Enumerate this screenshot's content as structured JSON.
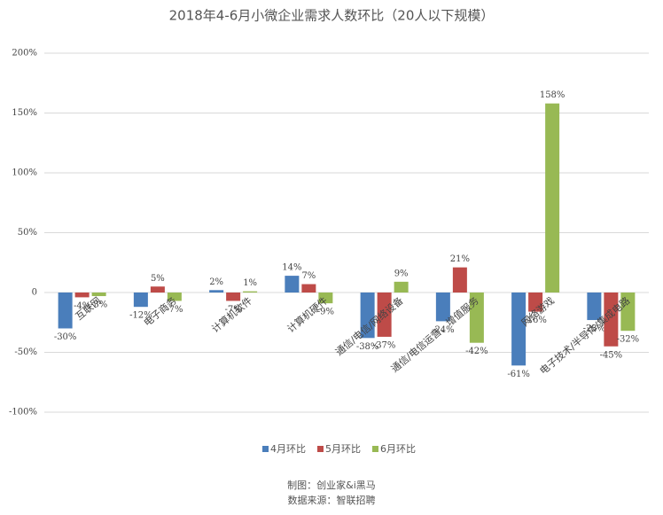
{
  "chart_data": {
    "type": "bar",
    "title": "2018年4-6月小微企业需求人数环比（20人以下规模）",
    "categories": [
      "互联网",
      "电子商务",
      "计算机软件",
      "计算机硬件",
      "通信/电信/网络设备",
      "通信/电信运营、增值服务",
      "网络游戏",
      "电子技术/半导体/集成电路"
    ],
    "series": [
      {
        "name": "4月环比",
        "color": "#4a7ebb",
        "values": [
          -30,
          -12,
          2,
          14,
          -38,
          -24,
          -61,
          -23
        ],
        "value_labels": [
          "-30%",
          "-12%",
          "2%",
          "14%",
          "-38%",
          "-24%",
          "-61%",
          "-23%"
        ]
      },
      {
        "name": "5月环比",
        "color": "#be4b48",
        "values": [
          -4,
          5,
          -7,
          7,
          -37,
          21,
          -16,
          -45
        ],
        "value_labels": [
          "-4%",
          "5%",
          "-7%",
          "7%",
          "-37%",
          "21%",
          "-16%",
          "-45%"
        ]
      },
      {
        "name": "6月环比",
        "color": "#98b954",
        "values": [
          -3,
          -7,
          1,
          -9,
          9,
          -42,
          158,
          -32
        ],
        "value_labels": [
          "-3%",
          "-7%",
          "1%",
          "-9%",
          "9%",
          "-42%",
          "158%",
          "-32%"
        ]
      }
    ],
    "ylim": [
      -100,
      200
    ],
    "yticks": [
      {
        "value": -100,
        "label": "-100%"
      },
      {
        "value": -50,
        "label": "-50%"
      },
      {
        "value": 0,
        "label": "0"
      },
      {
        "value": 50,
        "label": "50%"
      },
      {
        "value": 100,
        "label": "100%"
      },
      {
        "value": 150,
        "label": "150%"
      },
      {
        "value": 200,
        "label": "200%"
      }
    ],
    "grid": true,
    "legend": "bottom",
    "footer": [
      "制图：创业家&i黑马",
      "数据来源：智联招聘"
    ]
  }
}
